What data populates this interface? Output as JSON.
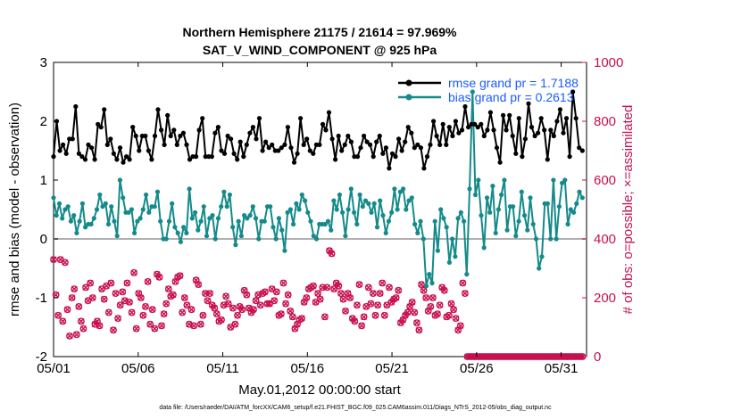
{
  "chart_data": {
    "type": "line",
    "title_line1": "Northern Hemisphere 21175 / 21614 = 97.969%",
    "title_line2": "SAT_V_WIND_COMPONENT @ 925 hPa",
    "xlabel": "May.01,2012 00:00:00 start",
    "ylabel": "rmse and bias (model - observation)",
    "ylabel_right": "# of obs: o=possible; ×=assimilated",
    "footnote": "data file: /Users/raeder/DAI/ATM_forcXX/CAM6_setup/f.e21.FHIST_BGC.f09_025.CAM6assim.011/Diags_NTrS_2012-05/obs_diag_output.nc",
    "xlim": [
      0,
      31.5
    ],
    "ylim": [
      -2,
      3
    ],
    "ylim_right": [
      0,
      1000
    ],
    "x_ticks": [
      {
        "value": 0,
        "label": "05/01"
      },
      {
        "value": 5,
        "label": "05/06"
      },
      {
        "value": 10,
        "label": "05/11"
      },
      {
        "value": 15,
        "label": "05/16"
      },
      {
        "value": 20,
        "label": "05/21"
      },
      {
        "value": 25,
        "label": "05/26"
      },
      {
        "value": 30,
        "label": "05/31"
      }
    ],
    "y_ticks": [
      "-2",
      "-1",
      "0",
      "1",
      "2",
      "3"
    ],
    "y_ticks_right": [
      "0",
      "200",
      "400",
      "600",
      "800",
      "1000"
    ],
    "legend": [
      {
        "name": "rmse grand pr = 1.7188",
        "color": "#000000"
      },
      {
        "name": "bias grand pr = 0.2613",
        "color": "#148a8a"
      }
    ],
    "series": [
      {
        "name": "rmse",
        "color": "#000000",
        "values": [
          1.4,
          2.0,
          1.5,
          1.6,
          1.45,
          1.7,
          1.7,
          2.25,
          1.45,
          1.4,
          1.35,
          1.6,
          1.55,
          1.35,
          1.95,
          1.9,
          2.2,
          1.6,
          1.7,
          1.45,
          1.35,
          1.55,
          1.3,
          1.4,
          1.35,
          1.9,
          1.75,
          1.5,
          1.75,
          1.75,
          1.5,
          1.35,
          1.75,
          2.2,
          1.85,
          1.6,
          2.1,
          1.75,
          1.85,
          1.6,
          1.75,
          1.8,
          1.6,
          1.35,
          1.4,
          1.4,
          1.85,
          2.05,
          1.4,
          1.4,
          1.4,
          1.8,
          1.9,
          1.5,
          1.45,
          1.75,
          1.7,
          1.45,
          1.35,
          1.65,
          1.4,
          1.6,
          1.8,
          1.9,
          1.7,
          2.05,
          1.5,
          1.65,
          1.55,
          1.6,
          1.5,
          1.5,
          1.55,
          1.6,
          1.9,
          1.55,
          1.3,
          1.45,
          2.05,
          1.6,
          1.7,
          1.5,
          1.45,
          1.6,
          1.6,
          1.95,
          1.85,
          2.15,
          1.7,
          1.35,
          1.75,
          1.5,
          1.6,
          1.75,
          1.65,
          1.4,
          1.4,
          1.55,
          1.75,
          1.65,
          1.6,
          1.4,
          1.65,
          1.75,
          1.45,
          1.55,
          1.2,
          1.45,
          1.4,
          1.7,
          1.5,
          1.65,
          1.9,
          1.8,
          1.55,
          1.6,
          1.55,
          1.2,
          1.4,
          1.6,
          2.0,
          1.75,
          1.6,
          1.95,
          1.6,
          1.9,
          1.75,
          2.0,
          1.8,
          1.85,
          2.25,
          1.9,
          1.95,
          1.95,
          1.9,
          1.95,
          1.75,
          1.85,
          2.15,
          1.85,
          1.55,
          1.3,
          2.1,
          1.85,
          2.1,
          1.75,
          1.45,
          2.05,
          1.4,
          1.7,
          2.3,
          1.9,
          1.75,
          1.8,
          2.05,
          1.85,
          1.35,
          1.85,
          1.75,
          2.0,
          2.2,
          1.8,
          2.05,
          1.4,
          2.5,
          2.05,
          1.55,
          1.5
        ]
      },
      {
        "name": "bias",
        "color": "#148a8a",
        "values": [
          0.7,
          0.4,
          0.6,
          0.35,
          0.5,
          0.55,
          0.3,
          0.4,
          0.1,
          0.3,
          0.6,
          0.2,
          0.25,
          0.25,
          0.35,
          0.5,
          0.75,
          0.55,
          0.6,
          0.25,
          0.55,
          0.3,
          0.05,
          1.0,
          0.7,
          0.45,
          0.45,
          0.5,
          0.1,
          0.3,
          0.35,
          0.5,
          0.75,
          0.45,
          0.55,
          0.55,
          0.8,
          0.3,
          0.0,
          0.0,
          0.3,
          0.6,
          0.2,
          0.1,
          -0.05,
          0.2,
          0.1,
          0.85,
          0.35,
          0.45,
          0.15,
          0.3,
          0.55,
          0.05,
          0.35,
          0.4,
          0.0,
          0.35,
          0.55,
          0.8,
          0.55,
          0.75,
          0.2,
          -0.1,
          0.3,
          0.05,
          0.4,
          0.35,
          0.4,
          0.55,
          0.35,
          0.0,
          0.3,
          0.3,
          0.55,
          0.55,
          0.2,
          0.0,
          0.35,
          0.15,
          -0.2,
          0.45,
          0.5,
          0.25,
          0.6,
          0.5,
          0.75,
          0.65,
          0.45,
          0.3,
          0.05,
          0.0,
          0.25,
          0.25,
          0.25,
          0.3,
          0.15,
          0.65,
          0.5,
          0.75,
          0.45,
          0.05,
          0.5,
          0.85,
          0.45,
          0.25,
          0.75,
          0.55,
          0.65,
          0.6,
          0.45,
          0.6,
          0.2,
          0.65,
          0.4,
          0.1,
          0.3,
          0.45,
          0.85,
          0.5,
          0.8,
          0.85,
          0.5,
          0.65,
          0.7,
          0.25,
          0.1,
          0.3,
          0.0,
          -0.8,
          -0.6,
          -0.75,
          0.3,
          -0.2,
          0.5,
          0.35,
          0.2,
          -0.4,
          0.0,
          -0.3,
          0.35,
          0.45,
          0.3,
          -0.6,
          0.85,
          2.5,
          0.75,
          1.0,
          0.4,
          -0.15,
          0.7,
          0.45,
          0.9,
          0.1,
          0.5,
          0.75,
          1.0,
          0.15,
          0.55,
          0.55,
          0.05,
          0.3,
          0.8,
          0.4,
          0.15,
          0.7,
          0.25,
          0.0,
          -0.5,
          -0.3,
          0.6,
          0.6,
          0.0,
          1.0,
          0.0,
          0.55,
          0.95,
          1.0,
          0.25,
          0.5,
          0.45,
          0.6,
          0.8,
          0.7
        ]
      },
      {
        "name": "obs_possible",
        "color": "#c8104e",
        "axis": "right",
        "values": [
          330,
          210,
          140,
          330,
          120,
          320,
          160,
          70,
          200,
          230,
          75,
          170,
          120,
          95,
          235,
          190,
          250,
          200,
          110,
          120,
          105,
          230,
          195,
          240,
          150,
          250,
          90,
          215,
          130,
          175,
          220,
          190,
          250,
          185,
          150,
          285,
          95,
          215,
          200,
          140,
          170,
          255,
          110,
          160,
          95,
          280,
          270,
          105,
          145,
          180,
          230,
          205,
          210,
          255,
          270,
          275,
          150,
          200,
          175,
          110,
          160,
          105,
          260,
          245,
          110,
          140,
          215,
          190,
          215,
          175,
          165,
          145,
          120,
          125,
          175,
          205,
          180,
          100,
          165,
          110,
          140,
          170,
          160,
          225,
          210,
          165,
          150,
          160,
          190,
          210,
          175,
          215,
          220,
          180,
          180,
          230,
          190,
          220,
          140,
          145,
          250,
          180,
          210,
          155,
          135,
          95,
          110,
          125,
          130,
          185,
          200,
          230,
          235,
          240,
          185,
          215,
          195,
          235,
          135,
          235,
          360,
          350,
          230,
          250,
          240,
          215,
          195,
          155,
          215,
          200,
          130,
          120,
          175,
          245,
          105,
          135,
          170,
          235,
          180,
          215,
          140,
          175,
          215,
          250,
          140,
          175,
          235,
          185,
          195,
          200,
          225,
          115,
          125,
          140,
          150,
          170,
          185,
          150,
          115,
          90,
          245,
          225,
          200,
          155,
          170,
          200,
          140,
          145,
          175,
          235,
          225,
          135,
          140,
          180,
          160,
          130,
          90,
          105,
          250,
          215,
          0,
          0,
          0,
          0,
          0,
          0,
          0,
          0,
          0,
          0,
          0,
          0,
          0,
          0,
          0,
          0,
          0,
          0,
          0,
          0,
          0,
          0,
          0,
          0,
          0,
          0,
          0,
          0,
          0,
          0,
          0,
          0,
          0,
          0,
          0,
          0,
          0,
          0,
          0,
          0,
          0,
          0,
          0,
          0,
          0,
          0,
          0,
          0,
          0,
          0,
          0
        ]
      }
    ]
  }
}
